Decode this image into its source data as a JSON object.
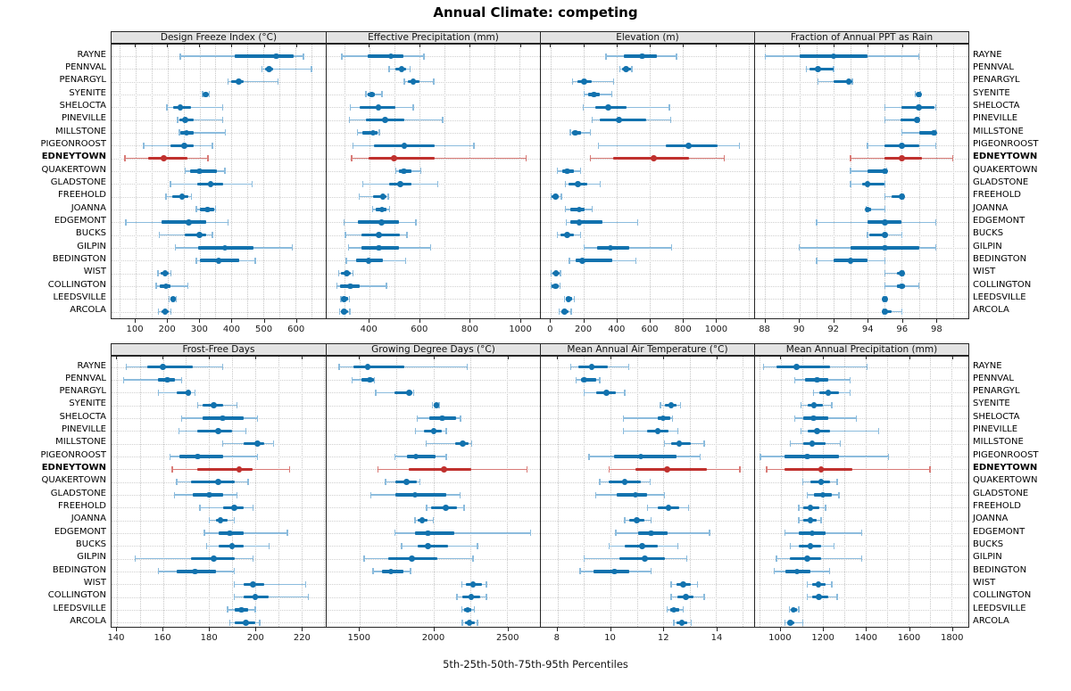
{
  "title": "Annual Climate: competing",
  "caption": "5th-25th-50th-75th-95th Percentiles",
  "highlight_site": "EDNEYTOWN",
  "sites": [
    "RAYNE",
    "PENNVAL",
    "PENARGYL",
    "SYENITE",
    "SHELOCTA",
    "PINEVILLE",
    "MILLSTONE",
    "PIGEONROOST",
    "EDNEYTOWN",
    "QUAKERTOWN",
    "GLADSTONE",
    "FREEHOLD",
    "JOANNA",
    "EDGEMONT",
    "BUCKS",
    "GILPIN",
    "BEDINGTON",
    "WIST",
    "COLLINGTON",
    "LEEDSVILLE",
    "ARCOLA"
  ],
  "colors": {
    "normal": "#1272ae",
    "normal_light": "#8cbcdd",
    "highlight": "#c0312e",
    "highlight_light": "#d97c78",
    "strip_bg": "#e3e3e3",
    "grid": "#c6c6c6"
  },
  "percentiles": [
    5,
    25,
    50,
    75,
    95
  ],
  "chart_data": [
    {
      "type": "dotplot",
      "row": 0,
      "col": 0,
      "title": "Design Freeze Index (°C)",
      "ticks": [
        100,
        200,
        300,
        400,
        500,
        600
      ],
      "domain": [
        25,
        695
      ],
      "grid_step": 50,
      "values": [
        [
          240,
          410,
          540,
          595,
          625
        ],
        [
          495,
          505,
          517,
          530,
          650
        ],
        [
          390,
          400,
          422,
          437,
          545
        ],
        [
          310,
          313,
          319,
          324,
          330
        ],
        [
          198,
          218,
          240,
          274,
          372
        ],
        [
          232,
          237,
          255,
          283,
          372
        ],
        [
          237,
          241,
          260,
          281,
          381
        ],
        [
          125,
          209,
          253,
          283,
          341
        ],
        [
          67,
          139,
          188,
          263,
          327
        ],
        [
          255,
          272,
          300,
          355,
          380
        ],
        [
          209,
          293,
          335,
          375,
          465
        ],
        [
          195,
          215,
          245,
          265,
          275
        ],
        [
          290,
          300,
          325,
          345,
          350
        ],
        [
          70,
          180,
          267,
          320,
          390
        ],
        [
          175,
          255,
          300,
          320,
          340
        ],
        [
          225,
          295,
          380,
          470,
          590
        ],
        [
          290,
          300,
          360,
          425,
          475
        ],
        [
          170,
          178,
          193,
          204,
          210
        ],
        [
          165,
          176,
          195,
          210,
          263
        ],
        [
          205,
          210,
          218,
          225,
          228
        ],
        [
          172,
          180,
          193,
          203,
          210
        ]
      ]
    },
    {
      "type": "dotplot",
      "row": 0,
      "col": 1,
      "title": "Effective Precipitation (mm)",
      "ticks": [
        400,
        600,
        800,
        1000
      ],
      "domain": [
        230,
        1081
      ],
      "grid_step": 100,
      "values": [
        [
          290,
          395,
          487,
          538,
          618
        ],
        [
          479,
          505,
          529,
          546,
          564
        ],
        [
          540,
          555,
          576,
          600,
          657
        ],
        [
          386,
          395,
          410,
          424,
          451
        ],
        [
          324,
          362,
          437,
          505,
          576
        ],
        [
          320,
          386,
          463,
          540,
          693
        ],
        [
          352,
          374,
          415,
          433,
          440
        ],
        [
          336,
          419,
          540,
          660,
          818
        ],
        [
          330,
          398,
          499,
          660,
          1026
        ],
        [
          505,
          517,
          538,
          570,
          606
        ],
        [
          374,
          479,
          523,
          570,
          674
        ],
        [
          360,
          415,
          455,
          470,
          476
        ],
        [
          413,
          427,
          451,
          469,
          481
        ],
        [
          300,
          354,
          448,
          517,
          586
        ],
        [
          305,
          368,
          439,
          523,
          550
        ],
        [
          317,
          368,
          439,
          517,
          645
        ],
        [
          308,
          348,
          398,
          454,
          546
        ],
        [
          279,
          287,
          311,
          326,
          336
        ],
        [
          270,
          285,
          324,
          362,
          469
        ],
        [
          287,
          291,
          300,
          314,
          320
        ],
        [
          281,
          287,
          299,
          314,
          323
        ]
      ]
    },
    {
      "type": "dotplot",
      "row": 0,
      "col": 2,
      "title": "Elevation (m)",
      "ticks": [
        0,
        200,
        400,
        600,
        800,
        1000
      ],
      "domain": [
        -61,
        1234
      ],
      "grid_step": 200,
      "values": [
        [
          335,
          443,
          555,
          642,
          763
        ],
        [
          420,
          430,
          456,
          484,
          492
        ],
        [
          130,
          160,
          203,
          250,
          380
        ],
        [
          203,
          226,
          262,
          298,
          371
        ],
        [
          195,
          268,
          347,
          461,
          720
        ],
        [
          250,
          298,
          412,
          579,
          727
        ],
        [
          118,
          127,
          148,
          181,
          239
        ],
        [
          290,
          695,
          837,
          1013,
          1143
        ],
        [
          239,
          376,
          624,
          841,
          1052
        ],
        [
          40,
          70,
          100,
          141,
          181
        ],
        [
          87,
          105,
          163,
          220,
          298
        ],
        [
          0,
          5,
          27,
          50,
          63
        ],
        [
          87,
          118,
          172,
          203,
          250
        ],
        [
          94,
          118,
          172,
          311,
          528
        ],
        [
          40,
          58,
          100,
          141,
          181
        ],
        [
          203,
          280,
          362,
          474,
          732
        ],
        [
          112,
          148,
          190,
          371,
          515
        ],
        [
          0,
          9,
          31,
          51,
          58
        ],
        [
          0,
          5,
          27,
          45,
          54
        ],
        [
          81,
          90,
          108,
          130,
          141
        ],
        [
          51,
          63,
          81,
          108,
          123
        ]
      ]
    },
    {
      "type": "dotplot",
      "row": 0,
      "col": 3,
      "title": "Fraction of Annual PPT as Rain",
      "ticks": [
        88,
        90,
        92,
        94,
        96,
        98
      ],
      "domain": [
        87.4,
        99.9
      ],
      "grid_step": 1,
      "values": [
        [
          88.0,
          90.0,
          92.0,
          94.0,
          97.0
        ],
        [
          90.4,
          90.6,
          91.1,
          92.0,
          92.0
        ],
        [
          91.1,
          92.0,
          92.9,
          93.1,
          93.1
        ],
        [
          96.8,
          96.9,
          97.0,
          97.1,
          97.1
        ],
        [
          95.0,
          96.0,
          97.0,
          97.9,
          98.0
        ],
        [
          95.0,
          95.9,
          96.9,
          97.0,
          97.0
        ],
        [
          96.0,
          97.0,
          97.9,
          98.0,
          98.0
        ],
        [
          94.0,
          95.0,
          96.0,
          97.0,
          98.0
        ],
        [
          93.0,
          95.0,
          96.0,
          97.2,
          99.0
        ],
        [
          93.0,
          94.0,
          95.0,
          95.1,
          95.1
        ],
        [
          93.0,
          93.7,
          94.0,
          95.0,
          95.0
        ],
        [
          95.0,
          95.4,
          96.0,
          96.0,
          96.1
        ],
        [
          93.9,
          93.9,
          94.0,
          94.2,
          95.0
        ],
        [
          91.0,
          94.0,
          95.0,
          96.0,
          98.0
        ],
        [
          94.0,
          94.1,
          95.0,
          95.1,
          96.0
        ],
        [
          90.0,
          93.0,
          95.0,
          97.0,
          98.0
        ],
        [
          91.0,
          92.0,
          93.0,
          94.0,
          95.0
        ],
        [
          95.0,
          95.7,
          96.0,
          96.1,
          96.1
        ],
        [
          95.0,
          95.7,
          96.0,
          96.2,
          97.0
        ],
        [
          94.9,
          95.0,
          95.0,
          95.1,
          95.1
        ],
        [
          94.9,
          95.0,
          95.0,
          95.4,
          96.0
        ]
      ]
    },
    {
      "type": "dotplot",
      "row": 1,
      "col": 0,
      "title": "Frost-Free Days",
      "ticks": [
        140,
        160,
        180,
        200,
        220
      ],
      "domain": [
        137.7,
        230.6
      ],
      "grid_step": 10,
      "values": [
        [
          144,
          153,
          160,
          173,
          186
        ],
        [
          143,
          158,
          162,
          165,
          168
        ],
        [
          158,
          166,
          171,
          172,
          174
        ],
        [
          175,
          177,
          182,
          186,
          192
        ],
        [
          168,
          177,
          186,
          195,
          201
        ],
        [
          167,
          175,
          184,
          190,
          196
        ],
        [
          186,
          195,
          201,
          204,
          208
        ],
        [
          163,
          167,
          175,
          186,
          201
        ],
        [
          164,
          175,
          193,
          199,
          215
        ],
        [
          166,
          172,
          184,
          191,
          197
        ],
        [
          165,
          173,
          180,
          186,
          192
        ],
        [
          176,
          186,
          191,
          195,
          199
        ],
        [
          180,
          183,
          185,
          188,
          191
        ],
        [
          178,
          184,
          189,
          195,
          214
        ],
        [
          179,
          184,
          190,
          195,
          206
        ],
        [
          148,
          172,
          182,
          191,
          199
        ],
        [
          158,
          166,
          174,
          183,
          191
        ],
        [
          191,
          195,
          199,
          204,
          222
        ],
        [
          191,
          195,
          200,
          206,
          223
        ],
        [
          188,
          191,
          194,
          197,
          200
        ],
        [
          189,
          191,
          196,
          200,
          202
        ]
      ]
    },
    {
      "type": "dotplot",
      "row": 1,
      "col": 1,
      "title": "Growing Degree Days (°C)",
      "ticks": [
        1500,
        2000,
        2500
      ],
      "domain": [
        1276,
        2724
      ],
      "grid_step": 250,
      "values": [
        [
          1360,
          1455,
          1555,
          1805,
          2230
        ],
        [
          1450,
          1510,
          1570,
          1595,
          1600
        ],
        [
          1610,
          1735,
          1835,
          1860,
          1865
        ],
        [
          1995,
          2010,
          2022,
          2032,
          2040
        ],
        [
          1890,
          1975,
          2060,
          2155,
          2185
        ],
        [
          1880,
          1938,
          2003,
          2060,
          2087
        ],
        [
          1950,
          2150,
          2200,
          2240,
          2260
        ],
        [
          1740,
          1820,
          1882,
          2015,
          2087
        ],
        [
          1625,
          1835,
          2073,
          2255,
          2635
        ],
        [
          1675,
          1745,
          1820,
          1890,
          1910
        ],
        [
          1575,
          1740,
          1875,
          2085,
          2180
        ],
        [
          1955,
          1985,
          2085,
          2160,
          2210
        ],
        [
          1875,
          1895,
          1925,
          1960,
          2000
        ],
        [
          1740,
          1875,
          1965,
          2145,
          2660
        ],
        [
          1785,
          1895,
          1965,
          2100,
          2300
        ],
        [
          1530,
          1695,
          1855,
          2025,
          2270
        ],
        [
          1590,
          1650,
          1712,
          1797,
          1845
        ],
        [
          2195,
          2220,
          2270,
          2330,
          2360
        ],
        [
          2160,
          2197,
          2257,
          2317,
          2360
        ],
        [
          2195,
          2210,
          2233,
          2257,
          2280
        ],
        [
          2197,
          2215,
          2245,
          2281,
          2300
        ]
      ]
    },
    {
      "type": "dotplot",
      "row": 1,
      "col": 2,
      "title": "Mean Annual Air Temperature (°C)",
      "ticks": [
        8,
        10,
        12,
        14
      ],
      "domain": [
        7.37,
        15.44
      ],
      "grid_step": 1,
      "values": [
        [
          8.5,
          8.8,
          9.3,
          9.9,
          10.7
        ],
        [
          8.7,
          8.9,
          9.0,
          9.45,
          9.6
        ],
        [
          9.0,
          9.45,
          9.85,
          10.2,
          10.55
        ],
        [
          11.9,
          12.05,
          12.3,
          12.5,
          12.65
        ],
        [
          10.5,
          11.8,
          12.0,
          12.25,
          12.35
        ],
        [
          10.5,
          11.4,
          11.8,
          12.2,
          12.55
        ],
        [
          12.05,
          12.3,
          12.6,
          13.05,
          13.55
        ],
        [
          9.2,
          10.15,
          11.15,
          12.5,
          13.4
        ],
        [
          9.95,
          10.95,
          12.15,
          13.65,
          14.9
        ],
        [
          9.6,
          9.95,
          10.55,
          11.15,
          11.5
        ],
        [
          9.45,
          10.25,
          10.95,
          11.4,
          12.05
        ],
        [
          11.4,
          11.8,
          12.2,
          12.6,
          12.95
        ],
        [
          10.55,
          10.7,
          11.0,
          11.3,
          11.55
        ],
        [
          10.2,
          11.05,
          11.55,
          12.15,
          13.75
        ],
        [
          9.95,
          10.55,
          11.2,
          11.8,
          12.55
        ],
        [
          9.0,
          10.35,
          11.3,
          12.05,
          12.9
        ],
        [
          8.85,
          9.35,
          10.15,
          10.7,
          11.55
        ],
        [
          12.3,
          12.5,
          12.75,
          13.05,
          13.3
        ],
        [
          12.3,
          12.55,
          12.85,
          13.15,
          13.55
        ],
        [
          12.15,
          12.25,
          12.4,
          12.6,
          12.75
        ],
        [
          12.4,
          12.5,
          12.7,
          12.9,
          13.05
        ]
      ]
    },
    {
      "type": "dotplot",
      "row": 1,
      "col": 3,
      "title": "Mean Annual Precipitation (mm)",
      "ticks": [
        1000,
        1200,
        1400,
        1600,
        1800
      ],
      "domain": [
        880,
        1880
      ],
      "grid_step": 100,
      "values": [
        [
          920,
          980,
          1075,
          1230,
          1405
        ],
        [
          1065,
          1115,
          1170,
          1225,
          1325
        ],
        [
          1155,
          1180,
          1223,
          1273,
          1325
        ],
        [
          1095,
          1125,
          1156,
          1198,
          1240
        ],
        [
          1065,
          1105,
          1155,
          1225,
          1355
        ],
        [
          1095,
          1125,
          1170,
          1230,
          1460
        ],
        [
          1045,
          1105,
          1148,
          1210,
          1280
        ],
        [
          905,
          1020,
          1125,
          1275,
          1505
        ],
        [
          935,
          1020,
          1190,
          1335,
          1700
        ],
        [
          1105,
          1140,
          1190,
          1230,
          1265
        ],
        [
          1125,
          1155,
          1198,
          1240,
          1273
        ],
        [
          1085,
          1105,
          1140,
          1180,
          1210
        ],
        [
          1085,
          1105,
          1139,
          1169,
          1190
        ],
        [
          1020,
          1085,
          1148,
          1210,
          1380
        ],
        [
          1045,
          1085,
          1140,
          1190,
          1250
        ],
        [
          980,
          1045,
          1125,
          1190,
          1380
        ],
        [
          970,
          1022,
          1077,
          1140,
          1230
        ],
        [
          1125,
          1148,
          1177,
          1210,
          1240
        ],
        [
          1125,
          1148,
          1180,
          1223,
          1265
        ],
        [
          1040,
          1050,
          1060,
          1075,
          1085
        ],
        [
          1020,
          1035,
          1046,
          1065,
          1105
        ]
      ]
    }
  ]
}
